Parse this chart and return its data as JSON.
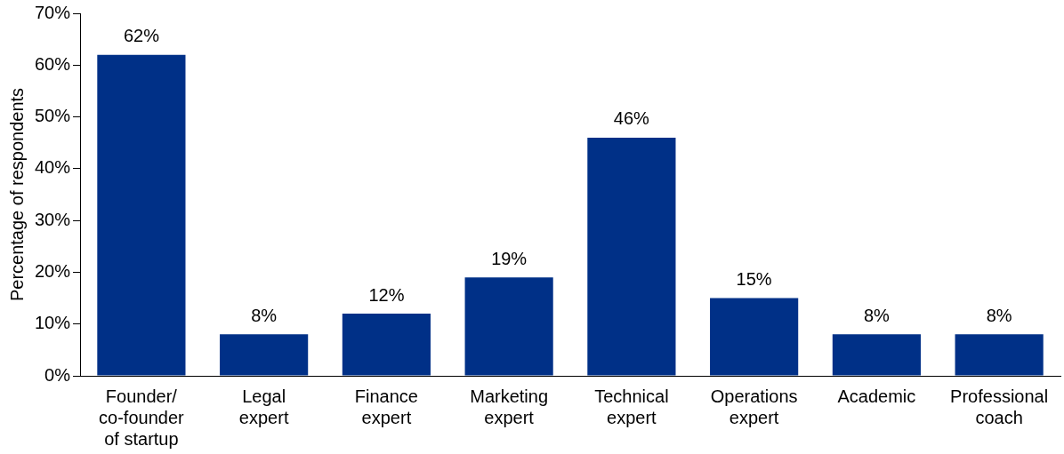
{
  "chart_data": {
    "type": "bar",
    "ylabel": "Percentage of respondents",
    "categories": [
      "Founder/\nco-founder\nof startup",
      "Legal\nexpert",
      "Finance\nexpert",
      "Marketing\nexpert",
      "Technical\nexpert",
      "Operations\nexpert",
      "Academic",
      "Professional\ncoach"
    ],
    "values": [
      62,
      8,
      12,
      19,
      46,
      15,
      8,
      8
    ],
    "value_labels": [
      "62%",
      "8%",
      "12%",
      "19%",
      "46%",
      "15%",
      "8%",
      "8%"
    ],
    "color": "#003087",
    "ylim": [
      0,
      70
    ],
    "yticks": [
      {
        "value": 0,
        "label": "0%"
      },
      {
        "value": 10,
        "label": "10%"
      },
      {
        "value": 20,
        "label": "20%"
      },
      {
        "value": 30,
        "label": "30%"
      },
      {
        "value": 40,
        "label": "40%"
      },
      {
        "value": 50,
        "label": "50%"
      },
      {
        "value": 60,
        "label": "60%"
      },
      {
        "value": 70,
        "label": "70%"
      }
    ],
    "grid": false,
    "legend": false
  }
}
